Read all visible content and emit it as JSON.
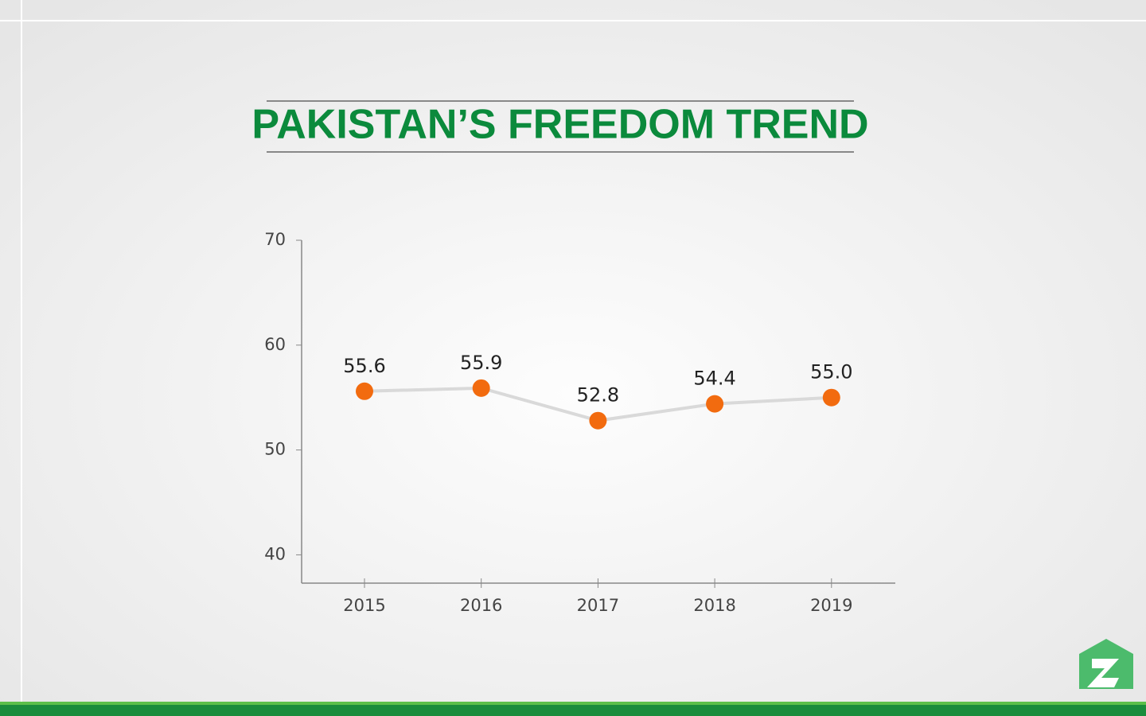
{
  "chart_data": {
    "type": "line",
    "title": "PAKISTAN’S FREEDOM TREND",
    "categories": [
      "2015",
      "2016",
      "2017",
      "2018",
      "2019"
    ],
    "values": [
      55.6,
      55.9,
      52.8,
      54.4,
      55.0
    ],
    "value_labels": [
      "55.6",
      "55.9",
      "52.8",
      "54.4",
      "55.0"
    ],
    "line_color": "#d9d9d9",
    "marker_color": "#f26b0f",
    "ylim": [
      37.3,
      70
    ],
    "yticks": [
      40,
      50,
      60,
      70
    ],
    "grid": false
  }
}
